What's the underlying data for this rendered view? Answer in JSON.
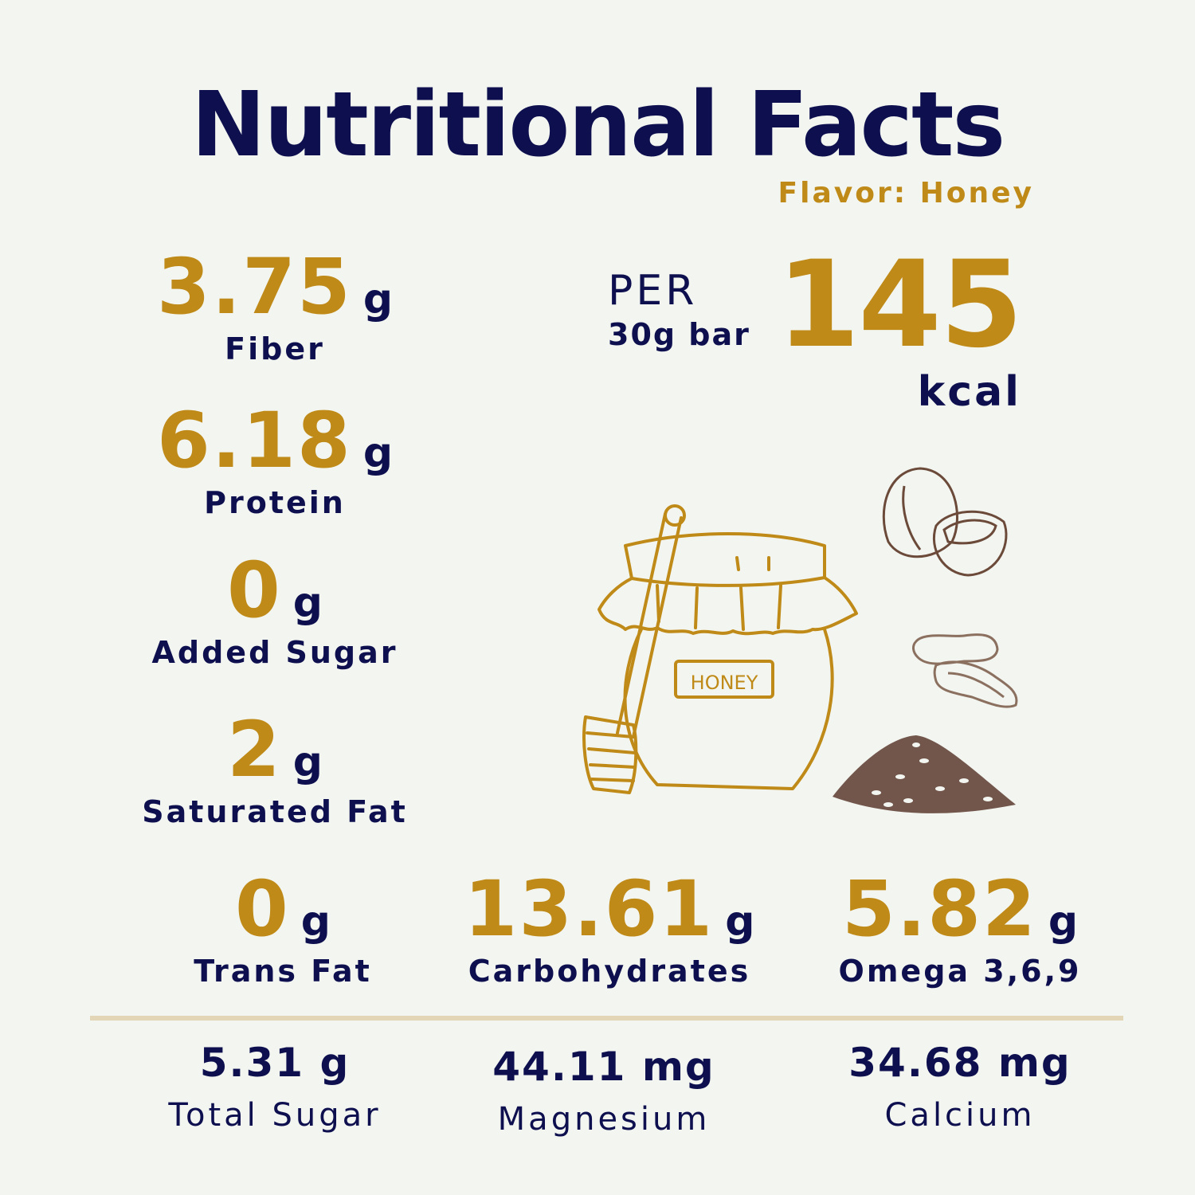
{
  "title": "Nutritional Facts",
  "flavor": "Flavor: Honey",
  "serving": {
    "per": "PER",
    "size": "30g bar",
    "calories": "145",
    "unit": "kcal"
  },
  "left_stats": [
    {
      "value": "3.75",
      "unit": "g",
      "label": "Fiber"
    },
    {
      "value": "6.18",
      "unit": "g",
      "label": "Protein"
    },
    {
      "value": "0",
      "unit": "g",
      "label": "Added Sugar"
    },
    {
      "value": "2",
      "unit": "g",
      "label": "Saturated Fat"
    },
    {
      "value": "0",
      "unit": "g",
      "label": "Trans Fat"
    }
  ],
  "row_stats": [
    {
      "value": "13.61",
      "unit": "g",
      "label": "Carbohydrates"
    },
    {
      "value": "5.82",
      "unit": "g",
      "label": "Omega 3,6,9"
    }
  ],
  "bottom_stats": [
    {
      "value": "5.31 g",
      "label": "Total Sugar"
    },
    {
      "value": "44.11 mg",
      "label": "Magnesium"
    },
    {
      "value": "34.68 mg",
      "label": "Calcium"
    }
  ],
  "jar_label": "HONEY",
  "colors": {
    "navy": "#0d0f4f",
    "gold": "#bf8a17",
    "background": "#f3f5f0",
    "divider": "#e2d6b6",
    "nut_brown": "#6b4a3a"
  },
  "illustrations": [
    "honey-jar-icon",
    "honey-dipper-icon",
    "hazelnut-icon",
    "peanut-icon",
    "seeds-pile-icon"
  ]
}
